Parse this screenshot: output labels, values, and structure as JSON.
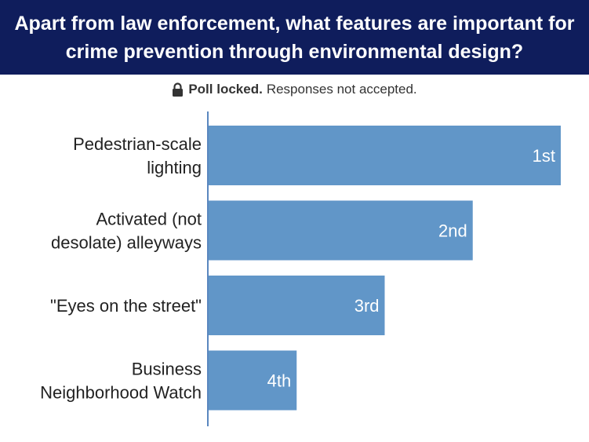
{
  "header": {
    "title": "Apart from law enforcement, what features are important for crime prevention through environmental design?"
  },
  "status": {
    "icon": "lock-icon",
    "locked_label": "Poll locked.",
    "message": "Responses not accepted."
  },
  "colors": {
    "header_bg": "#0f1d5c",
    "bar": "#6196c8",
    "axis": "#5a87bf"
  },
  "chart_data": {
    "type": "bar",
    "orientation": "horizontal",
    "title": "",
    "xlabel": "",
    "ylabel": "",
    "categories": [
      [
        "Pedestrian-scale",
        "lighting"
      ],
      [
        "Activated (not",
        "desolate) alleyways"
      ],
      [
        "\"Eyes on the street\""
      ],
      [
        "Business",
        "Neighborhood Watch"
      ]
    ],
    "values": [
      100,
      75,
      50,
      25
    ],
    "bar_labels": [
      "1st",
      "2nd",
      "3rd",
      "4th"
    ],
    "xlim": [
      0,
      100
    ],
    "grid": false
  }
}
